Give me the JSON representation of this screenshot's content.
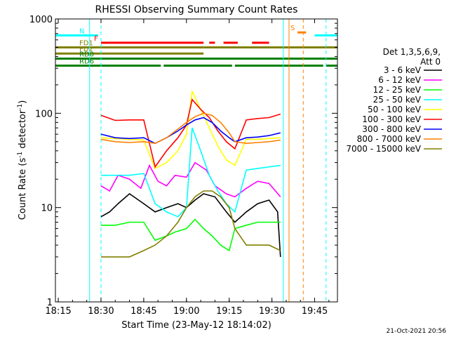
{
  "chart_data": {
    "type": "line",
    "title": "RHESSI Observing Summary Count Rates",
    "xlabel": "Start Time (23-May-12 18:14:02)",
    "ylabel": "Count Rate (s⁻¹ detector⁻¹)",
    "ylabel_main": "Count Rate (s",
    "ylabel_sup1": "-1",
    "ylabel_mid": " detector",
    "ylabel_sup2": "-1",
    "ylabel_end": ")",
    "y_scale": "log",
    "ylim": [
      1,
      1000
    ],
    "xlim": [
      "18:14",
      "19:53"
    ],
    "x_ticks": [
      "18:15",
      "18:30",
      "18:45",
      "19:00",
      "19:15",
      "19:30",
      "19:45"
    ],
    "y_ticks": [
      "1",
      "10",
      "100",
      "1000"
    ],
    "legend_header": [
      "Det 1,3,5,6,9,",
      "Att 0"
    ],
    "legend_placement": "right",
    "timestamp": "21-Oct-2021 20:56",
    "series": [
      {
        "name": "3 - 6 keV",
        "color": "#000000",
        "x": [
          "18:30",
          "18:33",
          "18:36",
          "18:40",
          "18:45",
          "18:49",
          "18:53",
          "18:57",
          "19:00",
          "19:03",
          "19:06",
          "19:10",
          "19:14",
          "19:17",
          "19:21",
          "19:25",
          "19:29",
          "19:32",
          "19:33"
        ],
        "y": [
          8,
          9,
          11,
          14,
          11,
          9,
          10,
          11,
          10,
          12,
          14,
          13,
          9,
          7,
          9,
          11,
          12,
          9,
          3
        ]
      },
      {
        "name": "6 - 12 keV",
        "color": "#ff00ff",
        "x": [
          "18:30",
          "18:33",
          "18:36",
          "18:40",
          "18:44",
          "18:47",
          "18:50",
          "18:53",
          "18:56",
          "19:00",
          "19:03",
          "19:07",
          "19:10",
          "19:14",
          "19:17",
          "19:21",
          "19:25",
          "19:29",
          "19:33"
        ],
        "y": [
          17,
          15,
          22,
          20,
          16,
          28,
          19,
          17,
          22,
          21,
          30,
          25,
          17,
          14,
          13,
          16,
          19,
          18,
          13
        ]
      },
      {
        "name": "12 - 25 keV",
        "color": "#00ff00",
        "x": [
          "18:30",
          "18:35",
          "18:40",
          "18:45",
          "18:49",
          "18:53",
          "18:56",
          "19:00",
          "19:03",
          "19:06",
          "19:09",
          "19:12",
          "19:15",
          "19:17",
          "19:21",
          "19:25",
          "19:29",
          "19:33"
        ],
        "y": [
          6.5,
          6.5,
          7,
          7,
          4.5,
          5,
          5.5,
          6,
          7.5,
          6,
          5,
          4,
          3.5,
          6,
          6.5,
          7,
          7,
          7
        ]
      },
      {
        "name": "25 - 50 keV",
        "color": "#00ffff",
        "x": [
          "18:30",
          "18:35",
          "18:40",
          "18:45",
          "18:49",
          "18:53",
          "18:57",
          "19:00",
          "19:02",
          "19:05",
          "19:08",
          "19:11",
          "19:14",
          "19:17",
          "19:21",
          "19:25",
          "19:29",
          "19:33"
        ],
        "y": [
          22,
          22,
          22,
          23,
          11,
          9,
          8,
          10,
          70,
          40,
          22,
          15,
          11,
          9,
          25,
          26,
          27,
          28
        ]
      },
      {
        "name": "50 - 100 keV",
        "color": "#ffff00",
        "x": [
          "18:30",
          "18:35",
          "18:40",
          "18:45",
          "18:49",
          "18:53",
          "18:57",
          "19:00",
          "19:02",
          "19:05",
          "19:08",
          "19:11",
          "19:14",
          "19:17",
          "19:21",
          "19:25",
          "19:29",
          "19:33"
        ],
        "y": [
          55,
          54,
          53,
          52,
          26,
          30,
          40,
          60,
          170,
          110,
          70,
          45,
          32,
          28,
          53,
          53,
          54,
          55
        ]
      },
      {
        "name": "100 - 300 keV",
        "color": "#ff0000",
        "x": [
          "18:30",
          "18:35",
          "18:40",
          "18:45",
          "18:49",
          "18:53",
          "18:57",
          "19:00",
          "19:02",
          "19:05",
          "19:08",
          "19:11",
          "19:14",
          "19:17",
          "19:21",
          "19:25",
          "19:29",
          "19:33"
        ],
        "y": [
          95,
          84,
          85,
          85,
          27,
          40,
          55,
          75,
          140,
          110,
          90,
          65,
          50,
          42,
          85,
          88,
          90,
          98
        ]
      },
      {
        "name": "300 - 800 keV",
        "color": "#0000ff",
        "x": [
          "18:30",
          "18:35",
          "18:40",
          "18:45",
          "18:49",
          "18:53",
          "18:57",
          "19:00",
          "19:03",
          "19:06",
          "19:09",
          "19:12",
          "19:15",
          "19:17",
          "19:21",
          "19:25",
          "19:29",
          "19:33"
        ],
        "y": [
          60,
          55,
          54,
          55,
          48,
          55,
          65,
          75,
          85,
          90,
          80,
          65,
          55,
          50,
          55,
          56,
          58,
          62
        ]
      },
      {
        "name": "800 - 7000 keV",
        "color": "#ff8000",
        "x": [
          "18:30",
          "18:35",
          "18:40",
          "18:45",
          "18:49",
          "18:53",
          "18:57",
          "19:00",
          "19:03",
          "19:06",
          "19:09",
          "19:12",
          "19:15",
          "19:17",
          "19:21",
          "19:25",
          "19:29",
          "19:33"
        ],
        "y": [
          53,
          50,
          49,
          50,
          48,
          55,
          68,
          80,
          92,
          100,
          95,
          80,
          62,
          50,
          48,
          49,
          50,
          52
        ]
      },
      {
        "name": "7000 - 15000 keV",
        "color": "#808000",
        "x": [
          "18:30",
          "18:35",
          "18:40",
          "18:45",
          "18:49",
          "18:53",
          "18:57",
          "19:00",
          "19:03",
          "19:06",
          "19:09",
          "19:12",
          "19:15",
          "19:17",
          "19:21",
          "19:25",
          "19:29",
          "19:33"
        ],
        "y": [
          3,
          3,
          3,
          3.5,
          4,
          5,
          7,
          10,
          13,
          15,
          15,
          13,
          10,
          6,
          4,
          4,
          4,
          3.5
        ]
      }
    ],
    "flag_bars": [
      {
        "label": "N",
        "color": "#00ffff",
        "y": 670,
        "segments": [
          [
            "18:14",
            "18:29"
          ],
          [
            "19:45",
            "19:53"
          ]
        ]
      },
      {
        "label": "S",
        "color": "#ff8000",
        "y": 720,
        "segments": [
          [
            "19:39",
            "19:42"
          ]
        ]
      },
      {
        "label": "F",
        "color": "#ff0000",
        "y": 560,
        "segments": [
          [
            "18:30",
            "19:06"
          ],
          [
            "19:08",
            "19:10"
          ],
          [
            "19:13",
            "19:18"
          ],
          [
            "19:23",
            "19:29"
          ]
        ]
      },
      {
        "label": "FD1",
        "color": "#808000",
        "y": 500,
        "segments": [
          [
            "18:14",
            "19:06"
          ],
          [
            "19:06",
            "19:53"
          ]
        ]
      },
      {
        "label": "FD2",
        "color": "#808000",
        "y": 430,
        "segments": [
          [
            "18:14",
            "19:06"
          ]
        ]
      },
      {
        "label": "RD0",
        "color": "#008000",
        "y": 380,
        "segments": [
          [
            "18:14",
            "19:53"
          ]
        ]
      },
      {
        "label": "RD6",
        "color": "#008000",
        "y": 320,
        "segments": [
          [
            "18:14",
            "18:51"
          ],
          [
            "18:52",
            "19:16"
          ],
          [
            "19:17",
            "19:48"
          ],
          [
            "19:49",
            "19:53"
          ]
        ]
      }
    ],
    "vertical_markers": [
      {
        "x": "18:26",
        "color": "#00ffff",
        "style": "solid"
      },
      {
        "x": "18:30",
        "color": "#00ffff",
        "style": "dashed"
      },
      {
        "x": "19:34",
        "color": "#00ffff",
        "style": "solid"
      },
      {
        "x": "19:36",
        "color": "#ff8000",
        "style": "solid"
      },
      {
        "x": "19:41",
        "color": "#ff8000",
        "style": "dashed"
      },
      {
        "x": "19:49",
        "color": "#00ffff",
        "style": "dashed"
      }
    ]
  }
}
